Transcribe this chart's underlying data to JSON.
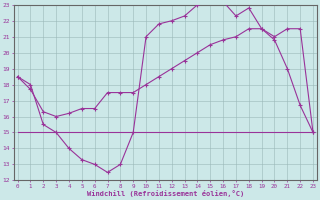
{
  "xlabel": "Windchill (Refroidissement éolien,°C)",
  "background_color": "#cce8e8",
  "grid_color": "#b0c8c8",
  "line_color": "#993399",
  "xmin": 0,
  "xmax": 23,
  "ymin": 12,
  "ymax": 23,
  "line1_x": [
    0,
    1,
    2,
    3,
    4,
    5,
    6,
    7,
    8,
    9,
    10,
    11,
    12,
    13,
    14,
    15,
    16,
    17,
    18,
    19,
    20,
    21,
    22,
    23
  ],
  "line1_y": [
    18.5,
    18.0,
    15.5,
    15.0,
    14.0,
    13.3,
    13.0,
    12.5,
    13.0,
    15.0,
    21.0,
    21.8,
    22.0,
    22.3,
    23.0,
    23.2,
    23.2,
    22.3,
    22.8,
    21.5,
    20.8,
    19.0,
    16.7,
    15.0
  ],
  "line2_x": [
    0,
    1,
    2,
    3,
    4,
    5,
    6,
    7,
    8,
    9,
    10,
    11,
    12,
    13,
    14,
    15,
    16,
    17,
    18,
    19,
    20,
    21,
    22,
    23
  ],
  "line2_y": [
    18.5,
    17.7,
    16.3,
    16.0,
    16.2,
    16.5,
    16.5,
    17.5,
    17.5,
    17.5,
    18.0,
    18.5,
    19.0,
    19.5,
    20.0,
    20.5,
    20.8,
    21.0,
    21.5,
    21.5,
    21.0,
    21.5,
    21.5,
    15.0
  ],
  "line3_x": [
    0,
    1,
    2,
    3,
    4,
    5,
    6,
    7,
    8,
    9,
    10,
    11,
    12,
    13,
    14,
    15,
    16,
    17,
    18,
    19,
    20,
    21,
    22,
    23
  ],
  "line3_y": [
    15.0,
    15.0,
    15.0,
    15.0,
    15.0,
    15.0,
    15.0,
    15.0,
    15.0,
    15.0,
    15.0,
    15.0,
    15.0,
    15.0,
    15.0,
    15.0,
    15.0,
    15.0,
    15.0,
    15.0,
    15.0,
    15.0,
    15.0,
    15.0
  ],
  "xtick_labels": [
    "0",
    "1",
    "2",
    "3",
    "4",
    "5",
    "6",
    "7",
    "8",
    "9",
    "10",
    "11",
    "12",
    "13",
    "14",
    "15",
    "16",
    "17",
    "18",
    "19",
    "20",
    "21",
    "22",
    "23"
  ],
  "ytick_labels": [
    "12",
    "13",
    "14",
    "15",
    "16",
    "17",
    "18",
    "19",
    "20",
    "21",
    "22",
    "23"
  ]
}
